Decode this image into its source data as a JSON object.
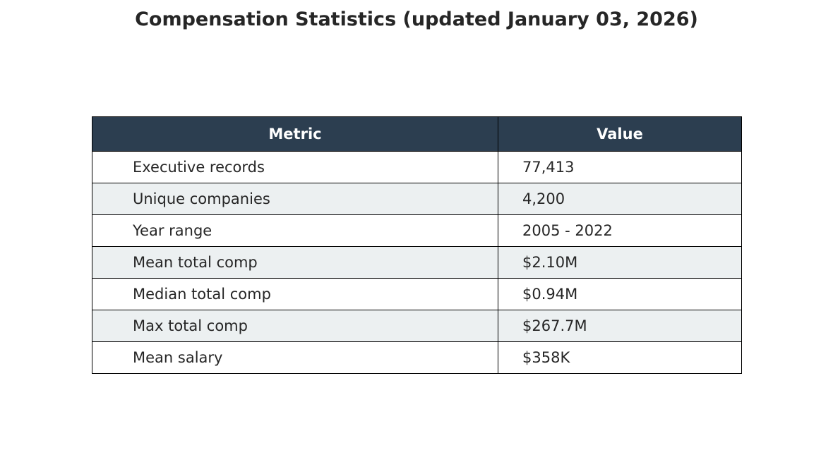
{
  "colors": {
    "header_bg": "#2c3e50",
    "header_text": "#ffffff",
    "row_stripe": "#ecf0f1",
    "row_plain": "#ffffff",
    "border": "#000000",
    "text": "#262626"
  },
  "chart_data": {
    "type": "table",
    "title": "Compensation Statistics (updated January 03, 2026)",
    "columns": [
      "Metric",
      "Value"
    ],
    "rows": [
      [
        "Executive records",
        "77,413"
      ],
      [
        "Unique companies",
        "4,200"
      ],
      [
        "Year range",
        "2005 - 2022"
      ],
      [
        "Mean total comp",
        "$2.10M"
      ],
      [
        "Median total comp",
        "$0.94M"
      ],
      [
        "Max total comp",
        "$267.7M"
      ],
      [
        "Mean salary",
        "$358K"
      ]
    ]
  }
}
